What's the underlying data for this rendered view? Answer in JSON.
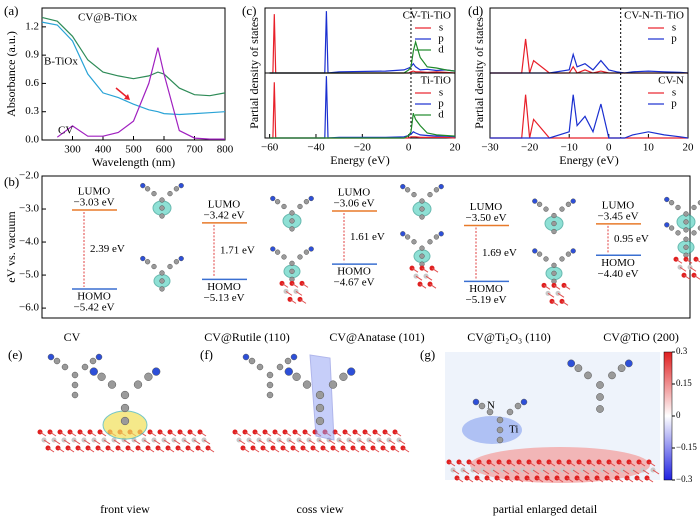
{
  "chart_data": [
    {
      "type": "line",
      "panel": "(a)",
      "xlabel": "Wavelength (nm)",
      "ylabel": "Absorbance (a.u.)",
      "xlim": [
        200,
        800
      ],
      "ylim": [
        0,
        1.4
      ],
      "xticks": [
        300,
        400,
        500,
        600,
        700,
        800
      ],
      "yticks": [
        {
          "value": 0,
          "label": "0.0"
        },
        0.3,
        0.6,
        0.9,
        1.2
      ],
      "x": [
        200,
        250,
        300,
        350,
        400,
        450,
        500,
        550,
        580,
        600,
        650,
        700,
        750,
        800
      ],
      "series": [
        {
          "name": "CV@B-TiOx",
          "color": "#2e8b57",
          "values": [
            1.3,
            1.26,
            1.1,
            0.85,
            0.72,
            0.68,
            0.65,
            0.68,
            0.72,
            0.7,
            0.55,
            0.48,
            0.47,
            0.5
          ]
        },
        {
          "name": "B-TiOx",
          "color": "#29a3d6",
          "values": [
            1.25,
            1.22,
            1.05,
            0.7,
            0.5,
            0.45,
            0.38,
            0.32,
            0.3,
            0.28,
            0.27,
            0.28,
            0.29,
            0.3
          ]
        },
        {
          "name": "CV",
          "color": "#a020c0",
          "values": [
            null,
            0.03,
            0.15,
            0.04,
            0.04,
            0.08,
            0.2,
            0.6,
            0.98,
            0.7,
            0.1,
            0.02,
            0.01,
            0.01
          ]
        }
      ]
    },
    {
      "type": "line",
      "panel": "(c)",
      "title": "CV-Ti-TiO",
      "ylabel": "Partial density of states",
      "legend": "upper right",
      "xlim": [
        -62,
        20
      ],
      "ylim": [
        0,
        1.05
      ],
      "vline": 1,
      "x": [
        -60,
        -58.6,
        -58,
        -57.4,
        -50,
        -36.2,
        -35.5,
        -34.8,
        -30,
        -10,
        -2,
        0,
        1,
        2,
        3,
        5,
        8,
        12,
        16,
        20
      ],
      "series": [
        {
          "name": "s",
          "color": "#e8202a",
          "values": [
            0,
            0,
            0.95,
            0,
            0,
            0,
            0,
            0,
            0,
            0,
            0,
            0,
            0.02,
            0.03,
            0.02,
            0.02,
            0.01,
            0.02,
            0.01,
            0
          ]
        },
        {
          "name": "p",
          "color": "#1a2fd0",
          "values": [
            0,
            0,
            0,
            0,
            0,
            0,
            1.0,
            0,
            0.02,
            0.03,
            0.05,
            0.08,
            0.1,
            0.15,
            0.1,
            0.05,
            0.06,
            0.04,
            0.05,
            0.03
          ]
        },
        {
          "name": "d",
          "color": "#1f8a2a",
          "values": [
            0,
            0,
            0,
            0,
            0,
            0,
            0,
            0,
            0,
            0,
            0,
            0.05,
            0.1,
            0.35,
            0.5,
            0.25,
            0.1,
            0.08,
            0.05,
            0.03
          ]
        }
      ]
    },
    {
      "type": "line",
      "title": "Ti-TiO",
      "xlabel": "Energy (eV)",
      "legend": "upper right",
      "xlim": [
        -62,
        20
      ],
      "ylim": [
        0,
        1.05
      ],
      "vline": 1,
      "xticks": [
        {
          "value": -60,
          "label": "−60"
        },
        {
          "value": -40,
          "label": "−40"
        },
        {
          "value": -20,
          "label": "−20"
        },
        0,
        20
      ],
      "x": [
        -60,
        -58.6,
        -58,
        -57.4,
        -50,
        -36.2,
        -35.5,
        -34.8,
        -30,
        -10,
        -2,
        0,
        1,
        2,
        3,
        5,
        8,
        12,
        16,
        20
      ],
      "series": [
        {
          "name": "s",
          "color": "#e8202a",
          "values": [
            0,
            0,
            0.9,
            0,
            0,
            0,
            0,
            0,
            0,
            0,
            0,
            0,
            0.02,
            0.02,
            0.02,
            0.01,
            0.01,
            0.01,
            0.01,
            0
          ]
        },
        {
          "name": "p",
          "color": "#1a2fd0",
          "values": [
            0,
            0,
            0,
            0,
            0,
            0,
            1.0,
            0,
            0.01,
            0.01,
            0.02,
            0.04,
            0.06,
            0.1,
            0.08,
            0.05,
            0.04,
            0.03,
            0.03,
            0.02
          ]
        },
        {
          "name": "d",
          "color": "#1f8a2a",
          "values": [
            0,
            0,
            0,
            0,
            0,
            0,
            0,
            0,
            0,
            0,
            0,
            0.04,
            0.1,
            0.4,
            0.3,
            0.2,
            0.08,
            0.05,
            0.04,
            0.03
          ]
        }
      ]
    },
    {
      "type": "line",
      "panel": "(d)",
      "title": "CV-N-Ti-TiO",
      "ylabel": "Partial density of states",
      "legend": "upper right",
      "xlim": [
        -30,
        20
      ],
      "ylim": [
        0,
        1.05
      ],
      "vline": 3,
      "x": [
        -30,
        -22,
        -21,
        -20,
        -19,
        -15,
        -10,
        -9,
        -8,
        -6,
        -4,
        -2,
        0,
        2,
        4,
        6,
        10,
        14,
        18,
        20
      ],
      "series": [
        {
          "name": "s",
          "color": "#e8202a",
          "values": [
            0,
            0,
            0.55,
            0,
            0.2,
            0,
            0,
            0.1,
            0,
            0.05,
            0,
            0.03,
            0,
            0,
            0,
            0,
            0,
            0,
            0,
            0
          ]
        },
        {
          "name": "p",
          "color": "#1a2fd0",
          "values": [
            0,
            0,
            0,
            0,
            0,
            0,
            0.05,
            0.3,
            0.1,
            0.15,
            0.05,
            0.2,
            0.05,
            0.02,
            0,
            0.02,
            0.03,
            0.02,
            0.01,
            0
          ]
        }
      ]
    },
    {
      "type": "line",
      "title": "CV-N",
      "xlabel": "Energy (eV)",
      "legend": "upper right",
      "xlim": [
        -30,
        20
      ],
      "ylim": [
        0,
        1.05
      ],
      "vline": 3,
      "xticks": [
        {
          "value": -30,
          "label": "−30"
        },
        {
          "value": -20,
          "label": "−20"
        },
        {
          "value": -10,
          "label": "−10"
        },
        0,
        10,
        20
      ],
      "x": [
        -30,
        -22,
        -21,
        -20,
        -19,
        -15,
        -10,
        -9,
        -8,
        -6,
        -4,
        -2,
        0,
        2,
        4,
        6,
        10,
        14,
        18,
        20
      ],
      "series": [
        {
          "name": "s",
          "color": "#e8202a",
          "values": [
            0,
            0,
            0.7,
            0,
            0.3,
            0,
            0,
            0,
            0,
            0,
            0,
            0,
            0,
            0,
            0,
            0,
            0,
            0,
            0,
            0
          ]
        },
        {
          "name": "p",
          "color": "#1a2fd0",
          "values": [
            0,
            0,
            0,
            0,
            0,
            0,
            0.1,
            0.7,
            0.2,
            0.35,
            0.1,
            0.55,
            0,
            0,
            0,
            0.05,
            0.1,
            0.05,
            0.02,
            0
          ]
        }
      ]
    },
    {
      "type": "energy_levels",
      "panel": "(b)",
      "ylabel": "eV vs. vacuum",
      "categories": [
        "CV",
        "CV@Rutile (110)",
        "CV@Anatase (101)",
        "CV@Ti₂O₃ (110)",
        "CV@TiO (200)"
      ],
      "ylim": [
        -6.3,
        -2.0
      ],
      "yticks": [
        {
          "value": -6.0,
          "label": "−6.0"
        },
        {
          "value": -5.0,
          "label": "−5.0"
        },
        {
          "value": -4.0,
          "label": "−4.0"
        },
        {
          "value": -3.0,
          "label": "−3.0"
        },
        {
          "value": -2.0,
          "label": "−2.0"
        }
      ],
      "series": [
        {
          "name": "LUMO",
          "color": "#e87a2a",
          "values": [
            -3.03,
            -3.42,
            -3.06,
            -3.5,
            -3.45
          ],
          "value_labels": [
            "−3.03 eV",
            "−3.42 eV",
            "−3.06 eV",
            "−3.50 eV",
            "−3.45 eV"
          ]
        },
        {
          "name": "HOMO",
          "color": "#3a6fd1",
          "values": [
            -5.42,
            -5.13,
            -4.67,
            -5.19,
            -4.4
          ],
          "value_labels": [
            "−5.42 eV",
            "−5.13 eV",
            "−4.67 eV",
            "−5.19 eV",
            "−4.40 eV"
          ]
        }
      ],
      "gaps": {
        "values": [
          2.39,
          1.71,
          1.61,
          1.69,
          0.95
        ],
        "value_labels": [
          "2.39 eV",
          "1.71 eV",
          "1.61 eV",
          "1.69 eV",
          "0.95 eV"
        ]
      }
    }
  ],
  "figures": {
    "panels": [
      {
        "label": "(e)",
        "caption": "front view"
      },
      {
        "label": "(f)",
        "caption": "coss view"
      },
      {
        "label": "(g)",
        "caption": "partial enlarged detail",
        "atoms": [
          "N",
          "Ti"
        ],
        "colorbar": {
          "lim": [
            -0.3,
            0.3
          ],
          "ticks": [
            0.3,
            0.15,
            0,
            {
              "value": -0.15,
              "label": "−0.15"
            },
            {
              "value": -0.3,
              "label": "−0.3"
            }
          ]
        }
      }
    ]
  }
}
